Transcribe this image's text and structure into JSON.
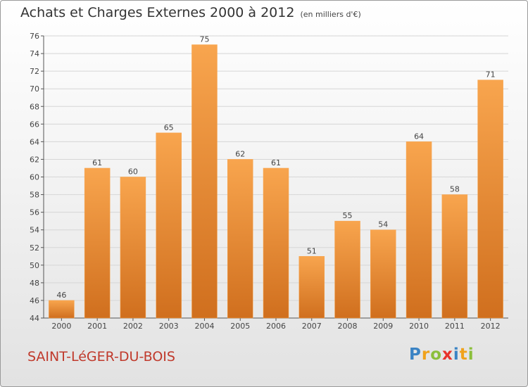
{
  "title": "Achats et Charges Externes 2000 à 2012",
  "subtitle": "(en milliers d'€)",
  "place_name": "SAINT-LéGER-DU-BOIS",
  "logo_text": "Proxiti",
  "colors": {
    "bar_light": "#f8a54e",
    "bar_dark": "#d06f1e",
    "title": "#333333",
    "place": "#c0392b",
    "grid": "#d6d6d6"
  },
  "chart_data": {
    "type": "bar",
    "title": "Achats et Charges Externes 2000 à 2012",
    "subtitle": "(en milliers d'€)",
    "categories": [
      "2000",
      "2001",
      "2002",
      "2003",
      "2004",
      "2005",
      "2006",
      "2007",
      "2008",
      "2009",
      "2010",
      "2011",
      "2012"
    ],
    "values": [
      46,
      61,
      60,
      65,
      75,
      62,
      61,
      51,
      55,
      54,
      64,
      58,
      71
    ],
    "ylim": [
      44,
      76
    ],
    "yticks": [
      44,
      46,
      48,
      50,
      52,
      54,
      56,
      58,
      60,
      62,
      64,
      66,
      68,
      70,
      72,
      74,
      76
    ],
    "grid": true,
    "data_labels": true
  }
}
